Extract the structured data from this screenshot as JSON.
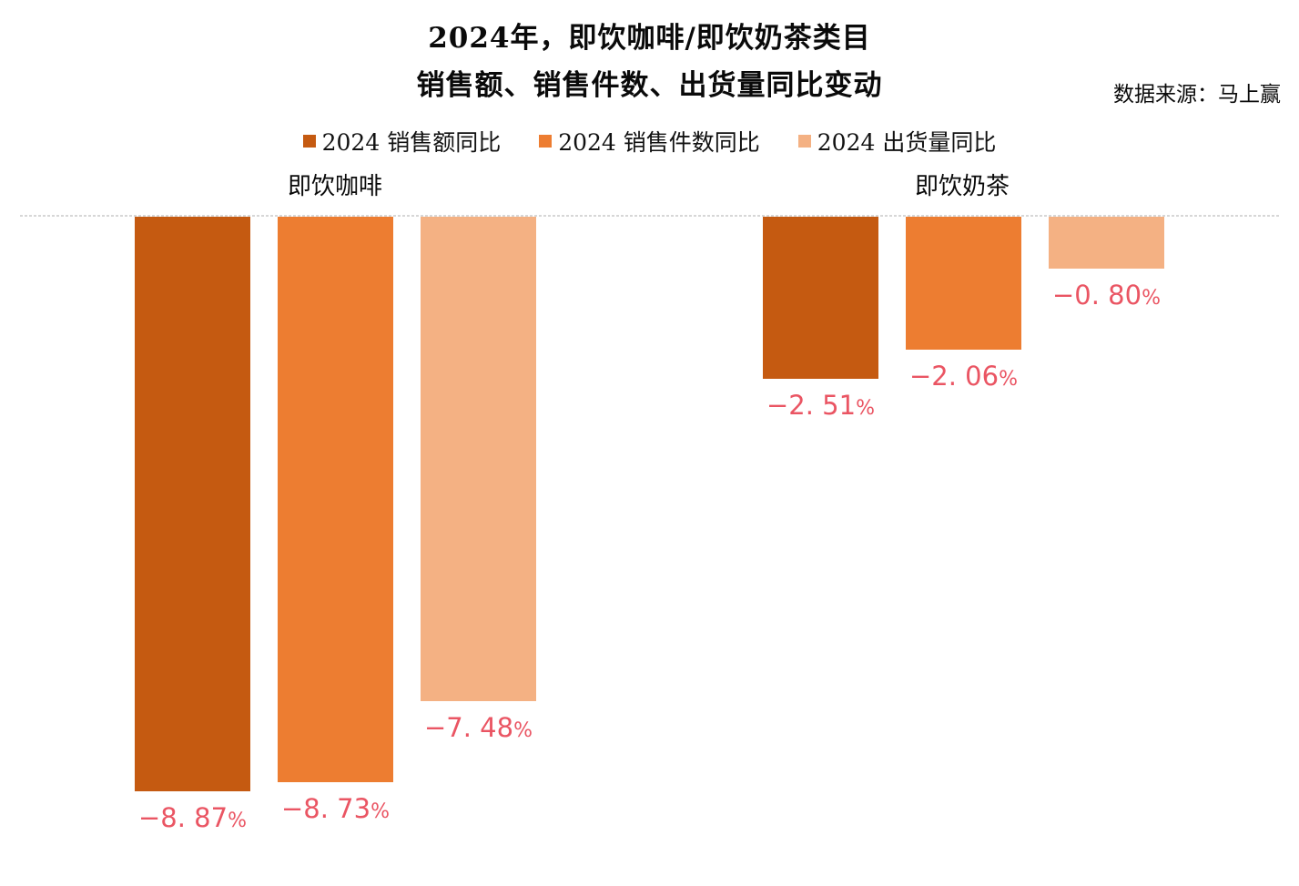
{
  "chart_data": {
    "type": "bar",
    "title_lines": [
      "2024年，即饮咖啡/即饮奶茶类目",
      "销售额、销售件数、出货量同比变动"
    ],
    "title": "2024年，即饮咖啡/即饮奶茶类目 销售额、销售件数、出货量同比变动",
    "source": "数据来源：马上赢",
    "categories": [
      "即饮咖啡",
      "即饮奶茶"
    ],
    "series": [
      {
        "name": "2024 销售额同比",
        "color": "#C55A11",
        "values": [
          -8.87,
          -2.51
        ],
        "labels": [
          "−8. 87%",
          "−2. 51%"
        ]
      },
      {
        "name": "2024 销售件数同比",
        "color": "#ED7D31",
        "values": [
          -8.73,
          -2.06
        ],
        "labels": [
          "−8. 73%",
          "−2. 06%"
        ]
      },
      {
        "name": "2024 出货量同比",
        "color": "#F4B183",
        "values": [
          -7.48,
          -0.8
        ],
        "labels": [
          "−7. 48%",
          "−0. 80%"
        ]
      }
    ],
    "unit": "%",
    "xlabel": "",
    "ylabel": "",
    "ylim": [
      -9.5,
      0
    ],
    "baseline": 0,
    "grid": false,
    "legend_position": "top",
    "zero_line_color": "#D7D7D7",
    "data_label_color": "#EA5563",
    "background": "#FFFFFF"
  }
}
